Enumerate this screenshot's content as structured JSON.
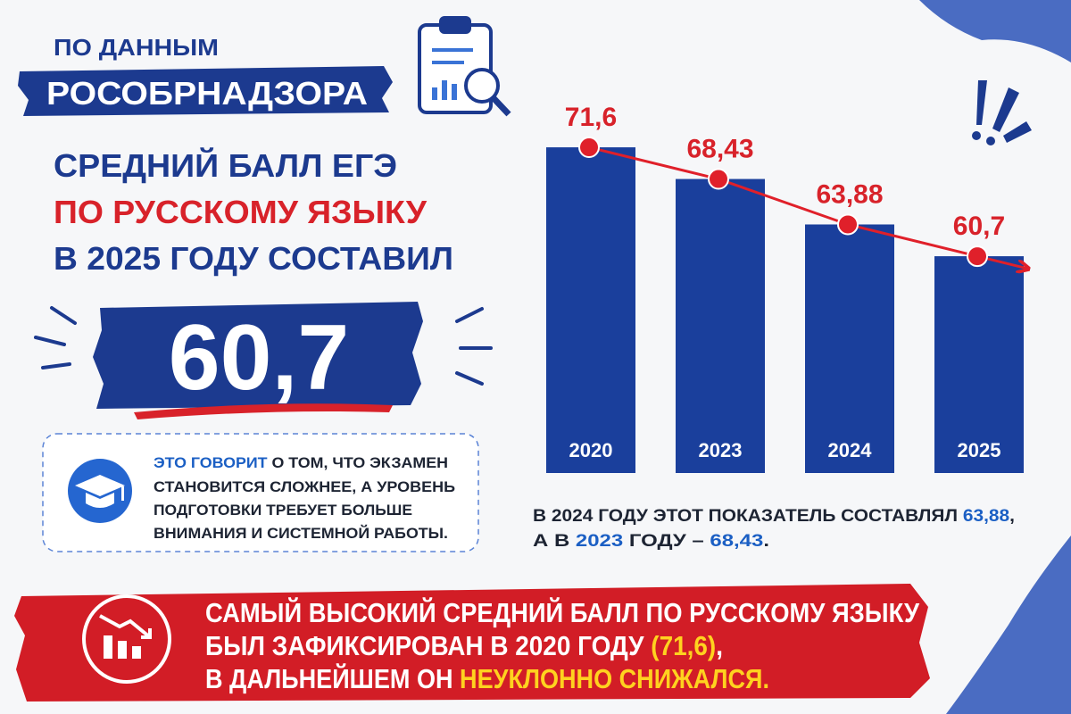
{
  "header": {
    "source_line1": "ПО ДАННЫМ",
    "source_line2": "РОСОБРНАДЗОРА",
    "title_lines": [
      "СРЕДНИЙ БАЛЛ ЕГЭ",
      "ПО РУССКОМУ ЯЗЫКУ",
      "В 2025 ГОДУ СОСТАВИЛ"
    ],
    "highlight": "60,7"
  },
  "info": {
    "lines": [
      [
        "ЭТО ГОВОРИТ",
        " О ТОМ, ЧТО ЭКЗАМЕН"
      ],
      [
        "СТАНОВИТСЯ СЛОЖНЕЕ, А УРОВЕНЬ"
      ],
      [
        "ПОДГОТОВКИ ТРЕБУЕТ БОЛЬШЕ"
      ],
      [
        "ВНИМАНИЯ И СИСТЕМНОЙ РАБОТЫ."
      ]
    ]
  },
  "note": {
    "lines": [
      [
        "В 2024 ГОДУ ЭТОТ ПОКАЗАТЕЛЬ СОСТАВЛЯЛ ",
        "63,88",
        ","
      ],
      [
        "А В ",
        "2023",
        " ГОДУ – ",
        "68,43",
        "."
      ]
    ]
  },
  "footer": {
    "lines": [
      [
        "САМЫЙ ВЫСОКИЙ СРЕДНИЙ БАЛЛ ПО РУССКОМУ ЯЗЫКУ"
      ],
      [
        "БЫЛ ЗАФИКСИРОВАН В 2020 ГОДУ ",
        "(71,6)",
        ","
      ],
      [
        "В ДАЛЬНЕЙШЕМ ОН ",
        "НЕУКЛОННО СНИЖАЛСЯ."
      ]
    ]
  },
  "chart_data": {
    "type": "bar",
    "categories": [
      "2020",
      "2023",
      "2024",
      "2025"
    ],
    "values": [
      71.6,
      68.43,
      63.88,
      60.7
    ],
    "value_labels": [
      "71,6",
      "68,43",
      "63,88",
      "60,7"
    ],
    "color": "#1a3f9c",
    "line_color": "#e0202a",
    "ylim": [
      39,
      75
    ]
  }
}
